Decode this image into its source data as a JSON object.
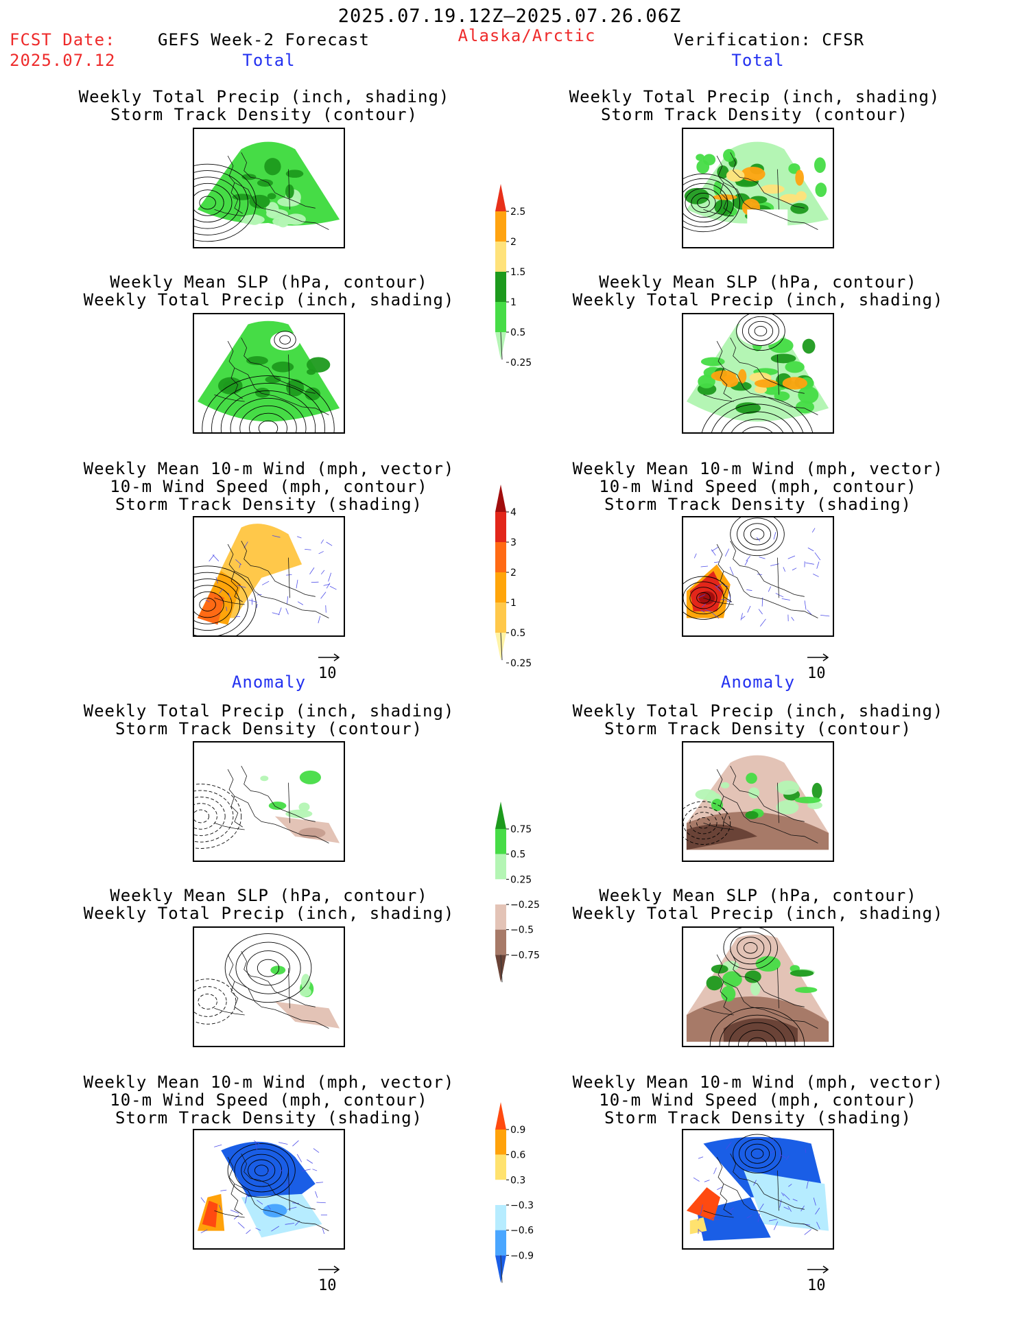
{
  "header": {
    "date_range": "2025.07.19.12Z–2025.07.26.06Z",
    "fcst_label": "FCST Date:",
    "fcst_date": "2025.07.12",
    "model": "GEFS Week-2 Forecast",
    "region": "Alaska/Arctic",
    "verification": "Verification: CFSR"
  },
  "sections": {
    "total": "Total",
    "anomaly": "Anomaly"
  },
  "panel_titles": {
    "precip_track": [
      "Weekly Total Precip (inch, shading)",
      "Storm Track Density (contour)"
    ],
    "slp_precip": [
      "Weekly Mean SLP (hPa, contour)",
      "Weekly Total Precip (inch, shading)"
    ],
    "wind_track": [
      "Weekly Mean 10-m Wind (mph, vector)",
      "10-m Wind Speed (mph, contour)",
      "Storm Track Density (shading)"
    ]
  },
  "vector_ref": "10",
  "colorbars": [
    {
      "name": "precip-total",
      "labels": [
        "2.5",
        "2",
        "1.5",
        "1",
        "0.5",
        "0.25"
      ],
      "colors": [
        "#e8301a",
        "#ffa310",
        "#ffe27a",
        "#1d9a1d",
        "#46dc46",
        "#b4f5b4"
      ]
    },
    {
      "name": "track-total",
      "labels": [
        "4",
        "3",
        "2",
        "1",
        "0.5",
        "0.25"
      ],
      "colors": [
        "#a10d0d",
        "#e2261a",
        "#ff6a14",
        "#ffa50a",
        "#ffc84a",
        "#fff3a6"
      ]
    },
    {
      "name": "precip-anom",
      "labels": [
        "0.75",
        "0.5",
        "0.25",
        "−0.25",
        "−0.5",
        "−0.75"
      ],
      "colors": [
        "#1d9a1d",
        "#46dc46",
        "#b4f5b4",
        "#ffffff",
        "#e3c3b6",
        "#a77a68",
        "#6a4337"
      ]
    },
    {
      "name": "track-anom",
      "labels": [
        "0.9",
        "0.6",
        "0.3",
        "−0.3",
        "−0.6",
        "−0.9"
      ],
      "colors": [
        "#ff4a10",
        "#ffa20a",
        "#ffe26e",
        "#ffffff",
        "#b6ecff",
        "#4aa6ff",
        "#1a5ee6"
      ]
    }
  ],
  "colors": {
    "title_red": "#ee2a2a",
    "section_blue": "#2230f0"
  }
}
